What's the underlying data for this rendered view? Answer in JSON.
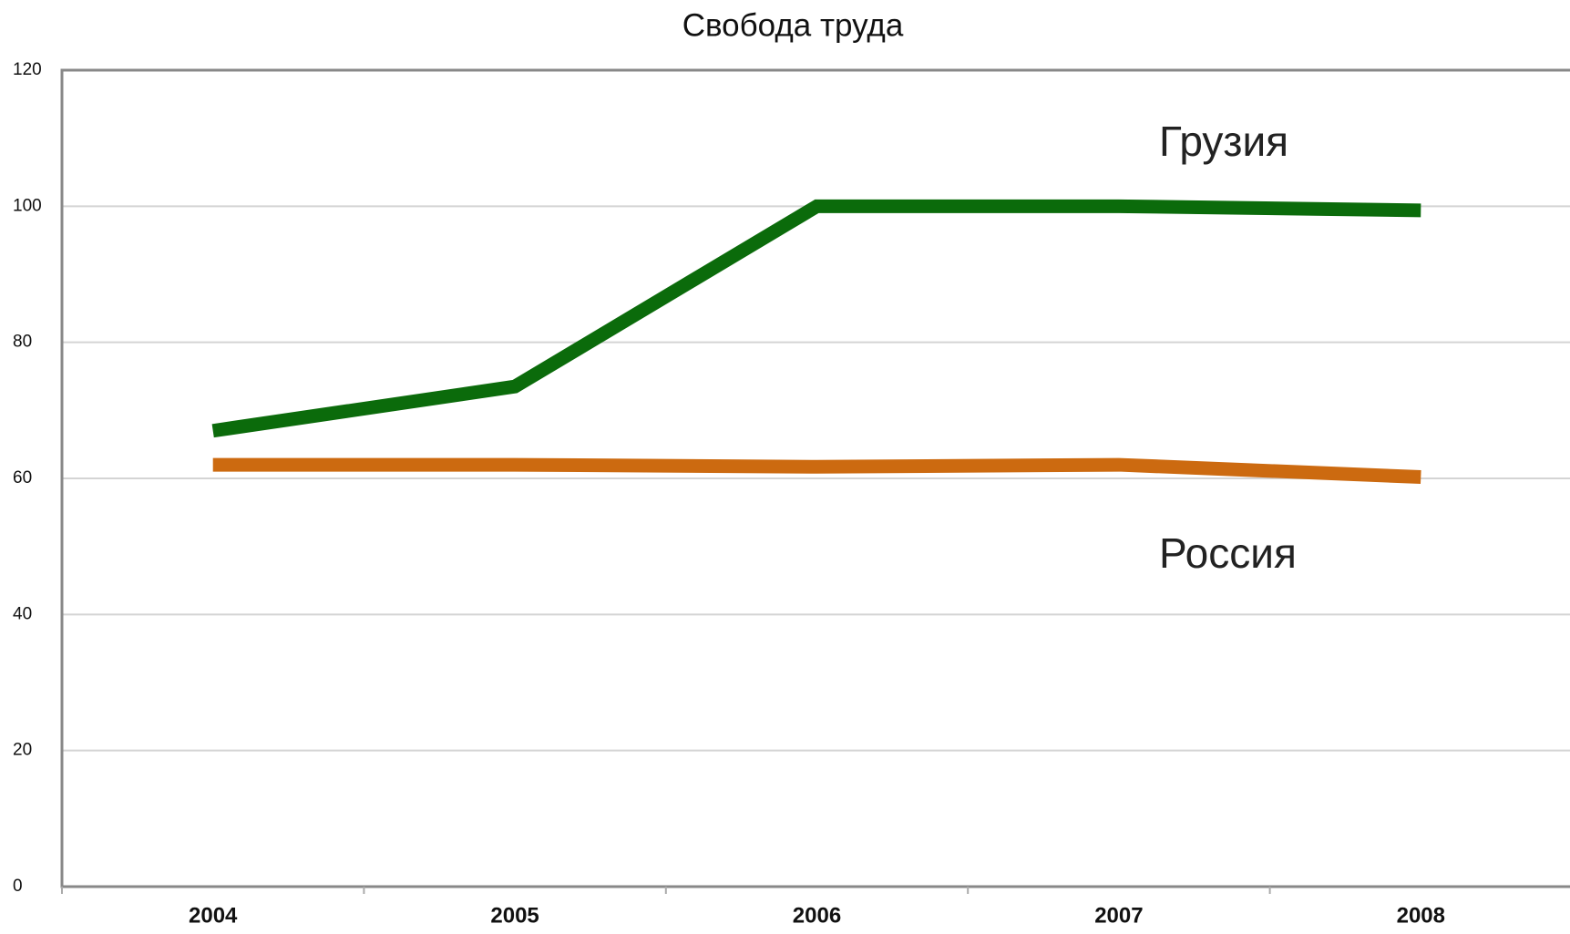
{
  "chart_data": {
    "type": "line",
    "title": "Свобода труда",
    "categories": [
      "2004",
      "2005",
      "2006",
      "2007",
      "2008"
    ],
    "series": [
      {
        "name": "Грузия",
        "color": "#0b6b0b",
        "values": [
          67,
          73.5,
          100,
          100,
          99.4
        ]
      },
      {
        "name": "Россия",
        "color": "#cc6a10",
        "values": [
          62,
          62,
          61.7,
          62,
          60.2
        ]
      }
    ],
    "ylim": [
      0,
      120
    ],
    "yticks": [
      0,
      20,
      40,
      60,
      80,
      100,
      120
    ],
    "grid": true
  }
}
